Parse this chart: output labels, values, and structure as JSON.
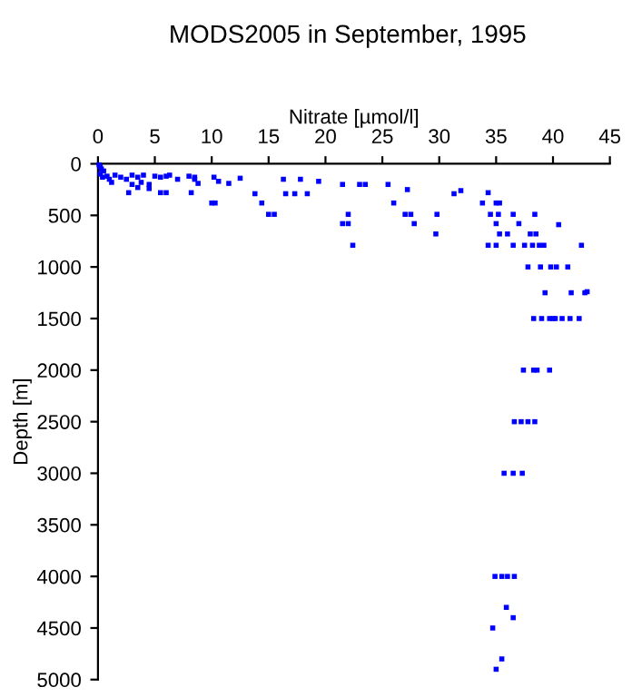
{
  "chart_data": {
    "type": "scatter",
    "title": "MODS2005 in September, 1995",
    "xlabel": "Nitrate [µmol/l]",
    "ylabel": "Depth [m]",
    "x": [
      0.1,
      0.2,
      0.3,
      0.5,
      0.2,
      0.8,
      1,
      0.4,
      1.5,
      2,
      2.5,
      3,
      3.5,
      4,
      3.8,
      4.5,
      3,
      1.2,
      5,
      5.5,
      6,
      6.3,
      7,
      8,
      8.5,
      8.8,
      8.5,
      2.7,
      3.5,
      4.5,
      5.5,
      6,
      8.2,
      10,
      10.3,
      10.2,
      10.6,
      11.5,
      12.5,
      13.8,
      14.4,
      15,
      15.5,
      16.3,
      16.5,
      17.3,
      17.8,
      18.4,
      19.4,
      21.5,
      23,
      23.5,
      25.5,
      26,
      27,
      27.5,
      27.2,
      27.8,
      29.8,
      29.7,
      31.3,
      31.9,
      21.5,
      22,
      22,
      22.4,
      34.3,
      33.8,
      35,
      35.3,
      34.5,
      35.2,
      35,
      35.3,
      36,
      34.3,
      35,
      36.5,
      37,
      36.5,
      37.5,
      38,
      38.5,
      38.4,
      38.2,
      38.8,
      39.2,
      40.5,
      42.5,
      37.8,
      38.9,
      39.8,
      40.3,
      41.3,
      39.3,
      41.6,
      42.8,
      43,
      38.3,
      39,
      39.7,
      40,
      40.2,
      40.8,
      41.5,
      42.3,
      37.4,
      38.3,
      38.6,
      39.7,
      36.6,
      37.2,
      37.8,
      38.4,
      35.7,
      36.5,
      37.3,
      34.9,
      35.5,
      36,
      36.6,
      35.9,
      36.5,
      34.7,
      35.5,
      35
    ],
    "values": [
      10,
      30,
      50,
      70,
      100,
      120,
      150,
      130,
      110,
      130,
      150,
      110,
      130,
      110,
      180,
      200,
      200,
      180,
      120,
      130,
      120,
      110,
      150,
      120,
      150,
      190,
      130,
      280,
      230,
      240,
      280,
      280,
      280,
      380,
      380,
      130,
      170,
      190,
      140,
      290,
      380,
      490,
      490,
      150,
      290,
      290,
      150,
      290,
      170,
      200,
      200,
      200,
      200,
      380,
      490,
      490,
      250,
      580,
      490,
      680,
      290,
      260,
      580,
      580,
      490,
      790,
      280,
      380,
      380,
      380,
      490,
      490,
      580,
      680,
      680,
      790,
      790,
      490,
      580,
      790,
      790,
      680,
      680,
      490,
      790,
      790,
      790,
      590,
      790,
      1000,
      1000,
      1000,
      1000,
      1000,
      1250,
      1250,
      1250,
      1240,
      1500,
      1500,
      1500,
      1500,
      1500,
      1500,
      1500,
      1500,
      2000,
      2000,
      2000,
      2000,
      2500,
      2500,
      2500,
      2500,
      3000,
      3000,
      3000,
      4000,
      4000,
      4000,
      4000,
      4300,
      4400,
      4500,
      4800,
      4900
    ],
    "color": "#0000ff",
    "marker": "square",
    "grid": false,
    "xlim": [
      0,
      45
    ],
    "xticks": [
      0,
      5,
      10,
      15,
      20,
      25,
      30,
      35,
      40,
      45
    ],
    "ylim": [
      5000,
      0
    ],
    "yticks": [
      0,
      500,
      1000,
      1500,
      2000,
      2500,
      3000,
      3500,
      4000,
      4500,
      5000
    ]
  }
}
